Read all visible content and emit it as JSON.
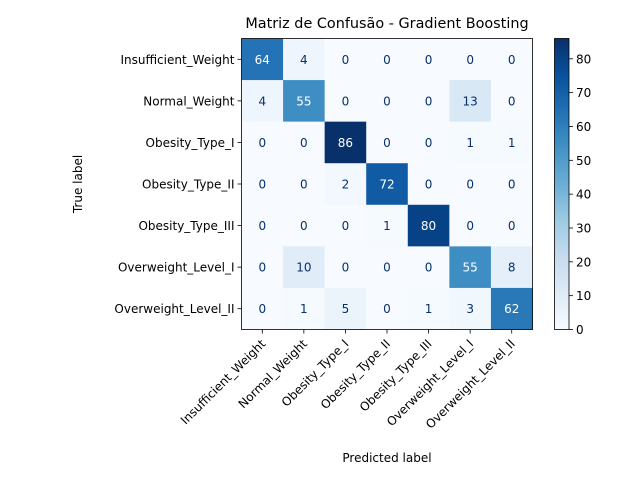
{
  "chart_data": {
    "type": "heatmap",
    "title": "Matriz de Confusão - Gradient Boosting",
    "xlabel": "Predicted label",
    "ylabel": "True label",
    "row_labels": [
      "Insufficient_Weight",
      "Normal_Weight",
      "Obesity_Type_I",
      "Obesity_Type_II",
      "Obesity_Type_III",
      "Overweight_Level_I",
      "Overweight_Level_II"
    ],
    "col_labels": [
      "Insufficient_Weight",
      "Normal_Weight",
      "Obesity_Type_I",
      "Obesity_Type_II",
      "Obesity_Type_III",
      "Overweight_Level_I",
      "Overweight_Level_II"
    ],
    "matrix": [
      [
        64,
        4,
        0,
        0,
        0,
        0,
        0
      ],
      [
        4,
        55,
        0,
        0,
        0,
        13,
        0
      ],
      [
        0,
        0,
        86,
        0,
        0,
        1,
        1
      ],
      [
        0,
        0,
        2,
        72,
        0,
        0,
        0
      ],
      [
        0,
        0,
        0,
        1,
        80,
        0,
        0
      ],
      [
        0,
        10,
        0,
        0,
        0,
        55,
        8
      ],
      [
        0,
        1,
        5,
        0,
        1,
        3,
        62
      ]
    ],
    "colormap": "Blues",
    "colorbar": {
      "min": 0,
      "max": 86,
      "ticks": [
        0,
        10,
        20,
        30,
        40,
        50,
        60,
        70,
        80
      ]
    }
  }
}
